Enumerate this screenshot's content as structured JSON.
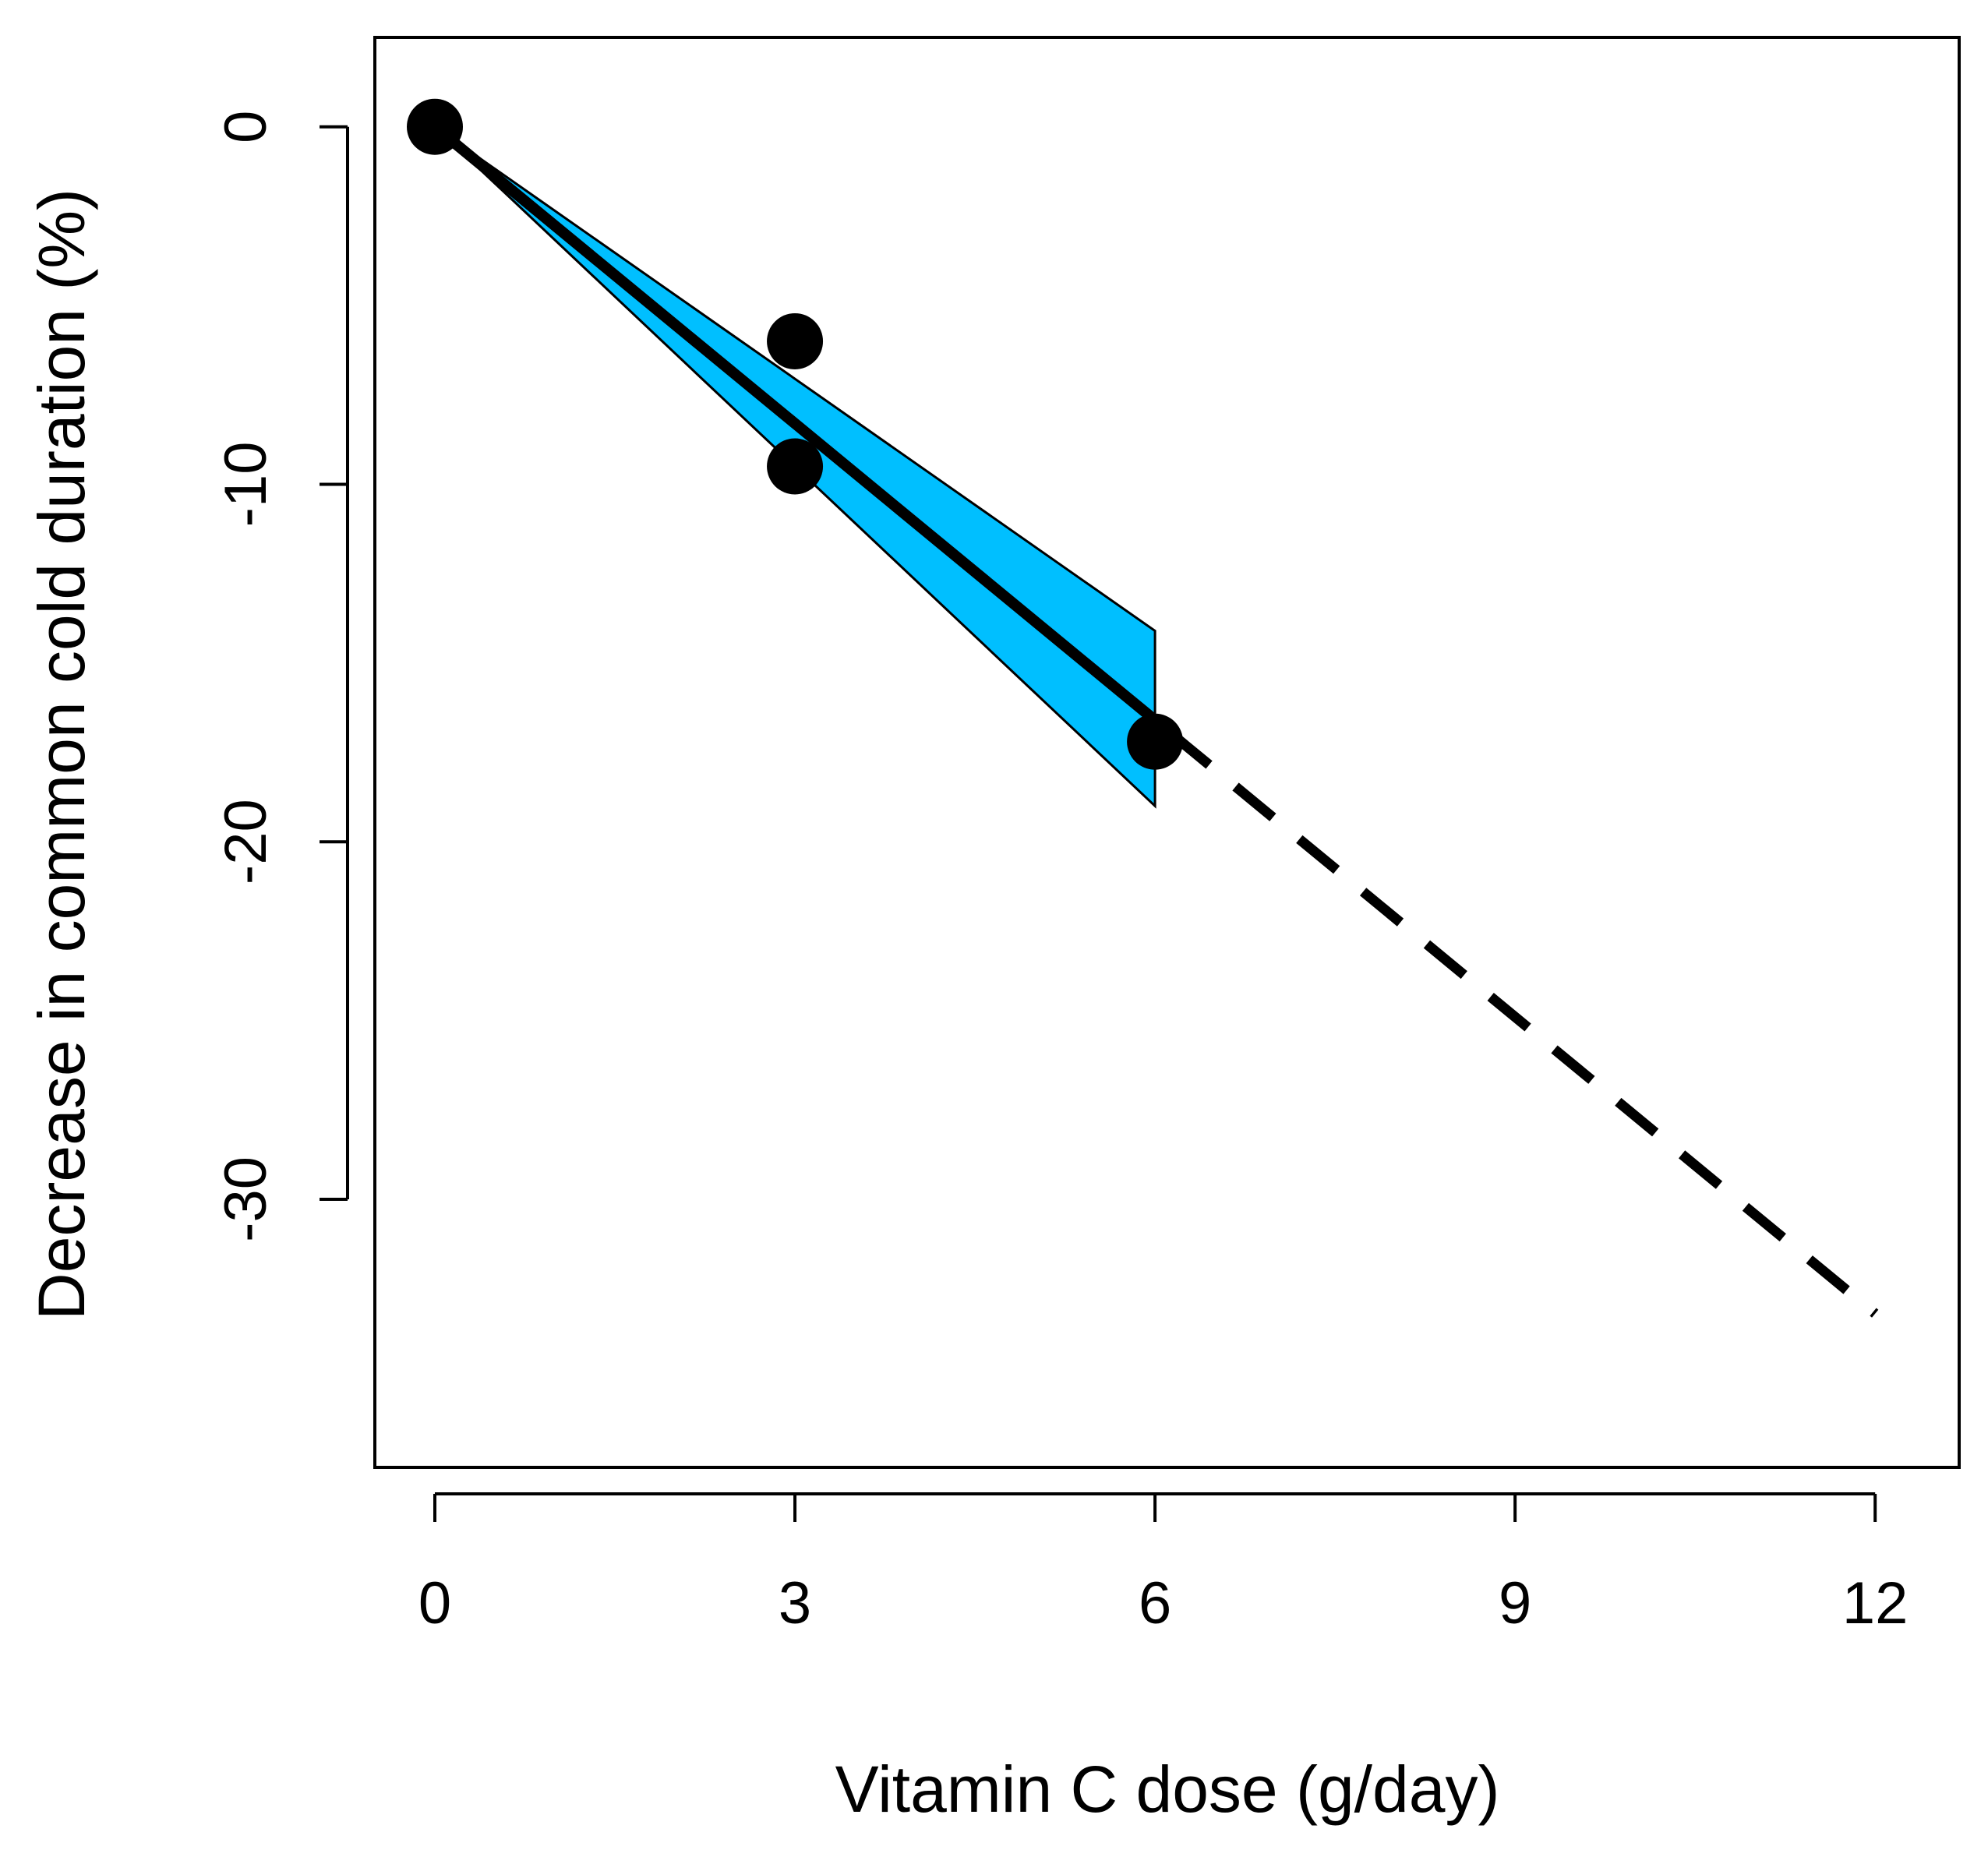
{
  "chart_data": {
    "type": "line",
    "title": "",
    "xlabel": "Vitamin C dose (g/day)",
    "ylabel": "Decrease in common cold duration (%)",
    "xlim": [
      -0.5,
      12.7
    ],
    "ylim": [
      -37.5,
      2.5
    ],
    "x_ticks": [
      0,
      3,
      6,
      9,
      12
    ],
    "x_tick_labels": [
      "0",
      "3",
      "6",
      "9",
      "12"
    ],
    "y_ticks": [
      0,
      -10,
      -20,
      -30
    ],
    "y_tick_labels": [
      "0",
      "-10",
      "-20",
      "-30"
    ],
    "grid": false,
    "points": [
      {
        "x": 0,
        "y": 0
      },
      {
        "x": 3,
        "y": -6
      },
      {
        "x": 3,
        "y": -9.5
      },
      {
        "x": 6,
        "y": -17.2
      }
    ],
    "fit_line": {
      "x": [
        0,
        6
      ],
      "y": [
        0,
        -16.6
      ]
    },
    "extrapolation": {
      "x": [
        6,
        12
      ],
      "y": [
        -16.6,
        -33.2
      ],
      "style": "dashed"
    },
    "confidence_band": {
      "x": [
        0,
        6
      ],
      "upper": [
        0,
        -14.1
      ],
      "lower": [
        0,
        -19
      ]
    },
    "colors": {
      "band": "#00BFFF",
      "line": "#000000",
      "points": "#000000"
    }
  }
}
